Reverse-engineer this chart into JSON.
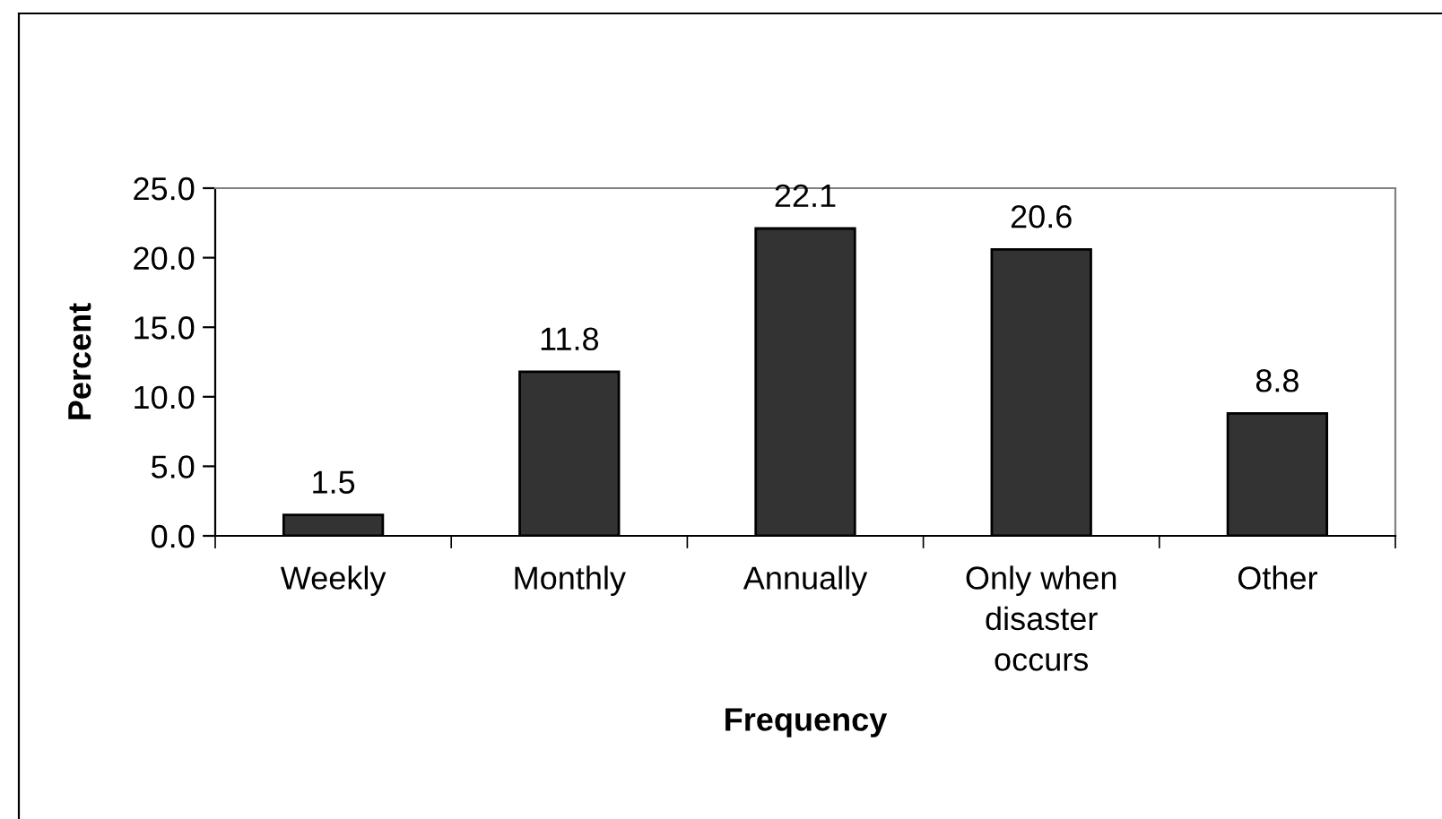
{
  "chart_data": {
    "type": "bar",
    "xlabel": "Frequency",
    "ylabel": "Percent",
    "categories": [
      "Weekly",
      "Monthly",
      "Annually",
      "Only when\ndisaster\noccurs",
      "Other"
    ],
    "values": [
      1.5,
      11.8,
      22.1,
      20.6,
      8.8
    ],
    "color": "#333333",
    "ylim": [
      0,
      25
    ],
    "yticks": [
      {
        "value": 0,
        "label": "0.0"
      },
      {
        "value": 5,
        "label": "5.0"
      },
      {
        "value": 10,
        "label": "10.0"
      },
      {
        "value": 15,
        "label": "15.0"
      },
      {
        "value": 20,
        "label": "20.0"
      },
      {
        "value": 25,
        "label": "25.0"
      }
    ],
    "data_labels": true,
    "grid": false,
    "legend": false
  }
}
